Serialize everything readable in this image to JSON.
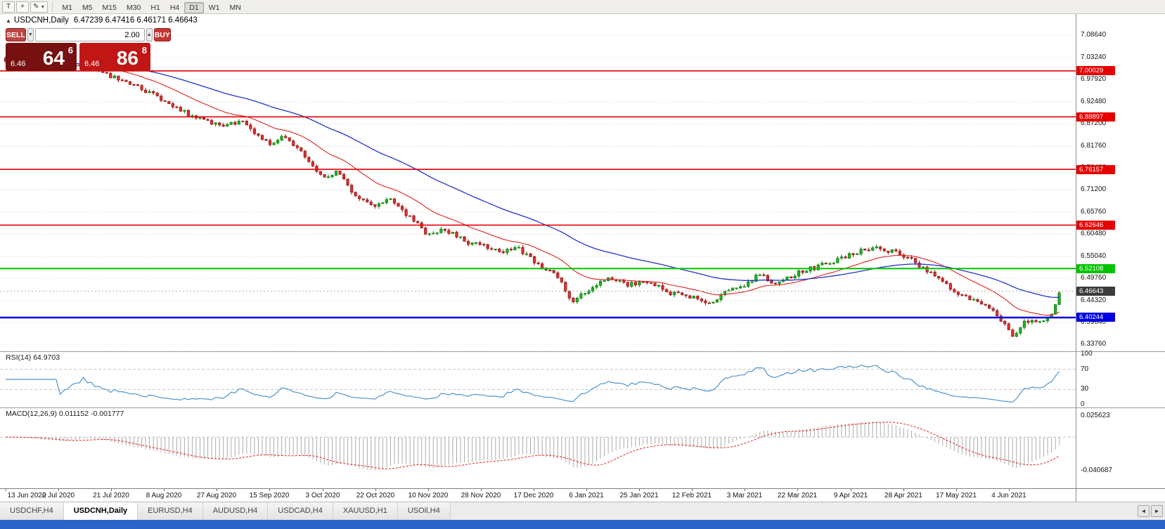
{
  "toolbar": {
    "pointer_tool_label": "T",
    "timeframes": [
      "M1",
      "M5",
      "M15",
      "M30",
      "H1",
      "H4",
      "D1",
      "W1",
      "MN"
    ],
    "active_timeframe": "D1"
  },
  "icons": {
    "caret_down": "▼",
    "caret_up": "▲",
    "collapse_triangle": "▲",
    "pencil": "✎",
    "crosshair": "+",
    "tab_prev": "◄",
    "tab_next": "►"
  },
  "chart_header": {
    "symbol_label": "USDCNH,Daily",
    "ohlc_text": "6.47239 6.47416 6.46171 6.46643"
  },
  "trade_panel": {
    "sell_label": "SELL",
    "buy_label": "BUY",
    "volume": "2.00",
    "bid": {
      "prefix": "6.46",
      "big": "64",
      "sup": "6"
    },
    "ask": {
      "prefix": "6.46",
      "big": "86",
      "sup": "8"
    }
  },
  "price_axis_labels": [
    "7.08640",
    "7.03240",
    "6.97920",
    "6.92480",
    "6.87200",
    "6.81760",
    "6.76480",
    "6.71200",
    "6.65760",
    "6.60480",
    "6.55040",
    "6.49760",
    "6.44320",
    "6.39040",
    "6.33760"
  ],
  "tabs": {
    "items": [
      {
        "label": "USDCHF,H4",
        "active": false
      },
      {
        "label": "USDCNH,Daily",
        "active": true
      },
      {
        "label": "EURUSD,H4",
        "active": false
      },
      {
        "label": "AUDUSD,H4",
        "active": false
      },
      {
        "label": "USDCAD,H4",
        "active": false
      },
      {
        "label": "XAUUSD,H1",
        "active": false
      },
      {
        "label": "USOil,H4",
        "active": false
      }
    ]
  },
  "chart_data": {
    "type": "candlestick",
    "symbol": "USDCNH",
    "timeframe": "Daily",
    "ohlc_current": {
      "open": 6.47239,
      "high": 6.47416,
      "low": 6.46171,
      "close": 6.46643
    },
    "price_domain": [
      6.3207,
      7.138
    ],
    "gridline_prices": [
      7.0864,
      7.0324,
      6.9792,
      6.9248,
      6.872,
      6.8176,
      6.7648,
      6.712,
      6.6576,
      6.6048,
      6.5504,
      6.4976,
      6.4432,
      6.3904,
      6.3376
    ],
    "horizontal_lines": [
      {
        "price": 7.00029,
        "label": "7.00029",
        "color": "#e60000",
        "width": 1.6
      },
      {
        "price": 6.88897,
        "label": "6.88897",
        "color": "#e60000",
        "width": 1.6
      },
      {
        "price": 6.76157,
        "label": "6.76157",
        "color": "#e60000",
        "width": 1.6
      },
      {
        "price": 6.62646,
        "label": "6.62646",
        "color": "#e60000",
        "width": 1.6
      },
      {
        "price": 6.52108,
        "label": "6.52108",
        "color": "#00c400",
        "width": 2
      },
      {
        "price": 6.40244,
        "label": "6.40244",
        "color": "#0000e0",
        "width": 2.4
      }
    ],
    "current_price": {
      "price": 6.46643,
      "label": "6.46643",
      "color": "#3c3c3c"
    },
    "date_labels": [
      "13 Jun 2020",
      "2 Jul 2020",
      "21 Jul 2020",
      "8 Aug 2020",
      "27 Aug 2020",
      "15 Sep 2020",
      "3 Oct 2020",
      "22 Oct 2020",
      "10 Nov 2020",
      "28 Nov 2020",
      "17 Dec 2020",
      "6 Jan 2021",
      "25 Jan 2021",
      "12 Feb 2021",
      "3 Mar 2021",
      "22 Mar 2021",
      "9 Apr 2021",
      "28 Apr 2021",
      "17 May 2021",
      "4 Jun 2021"
    ],
    "bars_per_label": 13.58,
    "total_bars": 272,
    "price_trend_anchors": [
      [
        0,
        7.028
      ],
      [
        0.6,
        7.012
      ],
      [
        1,
        7.004
      ],
      [
        1.5,
        7.018
      ],
      [
        2,
        6.986
      ],
      [
        2.6,
        6.955
      ],
      [
        3,
        6.93
      ],
      [
        3.5,
        6.892
      ],
      [
        4,
        6.868
      ],
      [
        4.5,
        6.874
      ],
      [
        5,
        6.826
      ],
      [
        5.3,
        6.842
      ],
      [
        5.7,
        6.788
      ],
      [
        6,
        6.742
      ],
      [
        6.3,
        6.756
      ],
      [
        6.6,
        6.7
      ],
      [
        7,
        6.672
      ],
      [
        7.3,
        6.69
      ],
      [
        7.7,
        6.64
      ],
      [
        8,
        6.604
      ],
      [
        8.3,
        6.618
      ],
      [
        8.7,
        6.586
      ],
      [
        9,
        6.58
      ],
      [
        9.4,
        6.56
      ],
      [
        9.7,
        6.572
      ],
      [
        10,
        6.538
      ],
      [
        10.4,
        6.512
      ],
      [
        10.75,
        6.438
      ],
      [
        11,
        6.468
      ],
      [
        11.4,
        6.5
      ],
      [
        11.8,
        6.482
      ],
      [
        12.2,
        6.49
      ],
      [
        12.6,
        6.462
      ],
      [
        13,
        6.452
      ],
      [
        13.35,
        6.44
      ],
      [
        13.7,
        6.47
      ],
      [
        14,
        6.48
      ],
      [
        14.3,
        6.51
      ],
      [
        14.6,
        6.48
      ],
      [
        15,
        6.512
      ],
      [
        15.4,
        6.526
      ],
      [
        16,
        6.556
      ],
      [
        16.4,
        6.572
      ],
      [
        16.8,
        6.562
      ],
      [
        17.2,
        6.54
      ],
      [
        17.6,
        6.5
      ],
      [
        18,
        6.464
      ],
      [
        18.4,
        6.442
      ],
      [
        18.7,
        6.42
      ],
      [
        18.95,
        6.384
      ],
      [
        19.1,
        6.357
      ],
      [
        19.25,
        6.39
      ],
      [
        19.5,
        6.396
      ],
      [
        19.7,
        6.4
      ],
      [
        19.8,
        6.408
      ],
      [
        19.88,
        6.436
      ],
      [
        19.96,
        6.464
      ]
    ],
    "candle_up_color": "#22b322",
    "candle_down_color": "#e03030",
    "ma_fast": {
      "period": 20,
      "color": "#e02020"
    },
    "ma_slow": {
      "period": 55,
      "color": "#2233cc"
    },
    "rsi": {
      "title": "RSI(14) 64.9703",
      "period": 14,
      "value": 64.9703,
      "levels": [
        100,
        70,
        30,
        0
      ],
      "line_color": "#4f94cd"
    },
    "macd": {
      "title": "MACD(12,26,9) 0.011152 -0.001777",
      "fast": 12,
      "slow": 26,
      "signal": 9,
      "value": 0.011152,
      "signal_value": -0.001777,
      "scale_top_label": "0.025623",
      "scale_top_value": 0.025623,
      "scale_bottom_label": "-0.040687",
      "scale_bottom_value": -0.040687,
      "histogram_color": "#ababab",
      "signal_color": "#e02020"
    }
  }
}
